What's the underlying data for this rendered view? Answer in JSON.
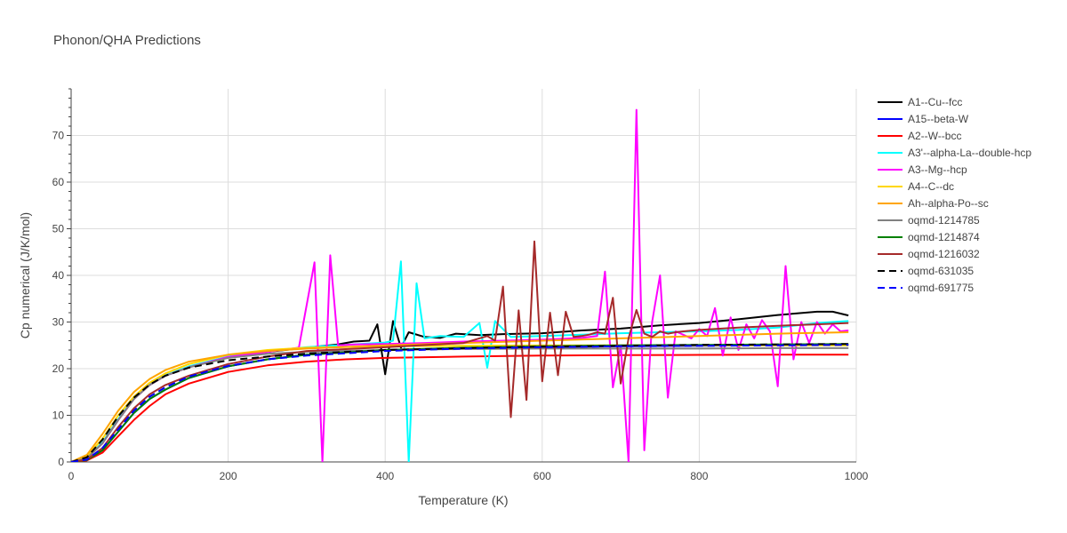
{
  "chart_data": {
    "type": "line",
    "title": "Phonon/QHA Predictions",
    "xlabel": "Temperature (K)",
    "ylabel": "Cp numerical (J/K/mol)",
    "xlim": [
      0,
      1000
    ],
    "ylim": [
      0,
      80
    ],
    "x_ticks": [
      0,
      200,
      400,
      600,
      800,
      1000
    ],
    "y_ticks": [
      0,
      10,
      20,
      30,
      40,
      50,
      60,
      70
    ],
    "grid": true,
    "legend_position": "right",
    "series": [
      {
        "name": "A1--Cu--fcc",
        "color": "#000000",
        "dash": "solid",
        "x": [
          0,
          20,
          40,
          60,
          80,
          100,
          120,
          150,
          200,
          250,
          300,
          340,
          360,
          380,
          390,
          400,
          410,
          420,
          430,
          450,
          470,
          490,
          520,
          550,
          600,
          650,
          700,
          750,
          800,
          850,
          900,
          950,
          970,
          990
        ],
        "y": [
          0,
          0.8,
          4,
          9,
          13.5,
          16.5,
          18.5,
          20.3,
          22.5,
          23.6,
          24.5,
          25.2,
          25.8,
          26,
          29.5,
          18.8,
          30.2,
          24.5,
          27.8,
          26.8,
          26.6,
          27.5,
          27.2,
          27.4,
          27.6,
          28.2,
          28.6,
          29.3,
          29.8,
          30.6,
          31.5,
          32.2,
          32.2,
          31.4
        ]
      },
      {
        "name": "A15--beta-W",
        "color": "#0000ff",
        "dash": "solid",
        "x": [
          0,
          20,
          40,
          60,
          80,
          100,
          120,
          150,
          200,
          250,
          300,
          400,
          500,
          600,
          700,
          800,
          900,
          990
        ],
        "y": [
          0,
          0.4,
          2.5,
          6.5,
          10.5,
          13.5,
          15.5,
          18,
          20.5,
          22,
          23,
          24,
          24.4,
          24.6,
          24.8,
          24.9,
          25,
          25.1
        ]
      },
      {
        "name": "A2--W--bcc",
        "color": "#ff0000",
        "dash": "solid",
        "x": [
          0,
          20,
          40,
          60,
          80,
          100,
          120,
          150,
          200,
          250,
          300,
          350,
          400,
          500,
          600,
          700,
          800,
          900,
          990
        ],
        "y": [
          0,
          0.3,
          2,
          5.5,
          9,
          12,
          14.5,
          16.8,
          19.3,
          20.7,
          21.5,
          22,
          22.3,
          22.6,
          22.8,
          22.9,
          22.95,
          23,
          23
        ]
      },
      {
        "name": "A3'--alpha-La--double-hcp",
        "color": "#00ffff",
        "dash": "solid",
        "x": [
          0,
          20,
          40,
          60,
          80,
          100,
          120,
          150,
          200,
          250,
          300,
          380,
          400,
          410,
          420,
          430,
          440,
          450,
          470,
          500,
          520,
          530,
          540,
          560,
          600,
          650,
          700,
          750,
          800,
          850,
          900,
          950,
          990
        ],
        "y": [
          0,
          0.9,
          4.2,
          9.2,
          13.6,
          16.6,
          18.6,
          20.5,
          22.6,
          23.8,
          24.6,
          25.4,
          25.6,
          26,
          43,
          0,
          38.3,
          26.5,
          27,
          26.8,
          29.8,
          20.2,
          30.2,
          26.8,
          27,
          27.3,
          27.6,
          27.8,
          28,
          28.3,
          28.8,
          29.8,
          30.2
        ]
      },
      {
        "name": "A3--Mg--hcp",
        "color": "#ff00ff",
        "dash": "solid",
        "x": [
          0,
          20,
          40,
          60,
          80,
          100,
          120,
          150,
          200,
          250,
          290,
          310,
          320,
          330,
          340,
          360,
          400,
          450,
          500,
          550,
          600,
          650,
          670,
          680,
          690,
          700,
          710,
          720,
          730,
          740,
          750,
          760,
          770,
          790,
          800,
          810,
          820,
          830,
          840,
          850,
          860,
          870,
          880,
          890,
          900,
          910,
          920,
          930,
          940,
          950,
          960,
          970,
          980,
          990
        ],
        "y": [
          0,
          0.8,
          4,
          9,
          13.5,
          16.5,
          18.5,
          20.3,
          22.5,
          23.6,
          24.5,
          42.8,
          0,
          44.3,
          25,
          25.2,
          25.3,
          25.5,
          25.8,
          26,
          26.2,
          26.6,
          27,
          40.8,
          16,
          25,
          0,
          75.5,
          2.5,
          30,
          40,
          13.8,
          28,
          26.5,
          28.5,
          27,
          33,
          22.8,
          31,
          24,
          29.5,
          26.5,
          30.4,
          28,
          16.2,
          42,
          22,
          30,
          25.5,
          30,
          27.5,
          29.5,
          28,
          28.2
        ]
      },
      {
        "name": "A4--C--dc",
        "color": "#ffd700",
        "dash": "solid",
        "x": [
          0,
          20,
          40,
          60,
          80,
          100,
          120,
          150,
          200,
          250,
          300,
          400,
          500,
          600,
          700,
          800,
          900,
          990
        ],
        "y": [
          0,
          1.2,
          5,
          10,
          14,
          17,
          19,
          21,
          23,
          24,
          24.5,
          24.8,
          24.9,
          25,
          25,
          25,
          25,
          25
        ]
      },
      {
        "name": "Ah--alpha-Po--sc",
        "color": "#ffa500",
        "dash": "solid",
        "x": [
          0,
          20,
          40,
          60,
          80,
          100,
          120,
          150,
          200,
          250,
          300,
          400,
          500,
          600,
          700,
          800,
          900,
          990
        ],
        "y": [
          0,
          1.5,
          6,
          11,
          15,
          17.8,
          19.7,
          21.5,
          23,
          23.8,
          24.3,
          25,
          25.5,
          26,
          26.5,
          27,
          27.5,
          27.8
        ]
      },
      {
        "name": "oqmd-1214785",
        "color": "#808080",
        "dash": "solid",
        "x": [
          0,
          20,
          40,
          60,
          80,
          100,
          120,
          150,
          200,
          250,
          300,
          400,
          500,
          600,
          700,
          800,
          900,
          990
        ],
        "y": [
          0,
          0.8,
          4,
          9,
          13.5,
          16.5,
          18.5,
          20.3,
          22.3,
          23.2,
          23.6,
          24,
          24.2,
          24.3,
          24.3,
          24.3,
          24.4,
          24.4
        ]
      },
      {
        "name": "oqmd-1214874",
        "color": "#008000",
        "dash": "solid",
        "x": [
          0,
          20,
          40,
          60,
          80,
          100,
          120,
          150,
          200,
          250,
          300,
          400,
          500,
          600,
          700,
          800,
          900,
          990
        ],
        "y": [
          0,
          0.4,
          2.5,
          6.5,
          10.5,
          13.5,
          15.5,
          18,
          20.5,
          22,
          23,
          24,
          24.5,
          24.8,
          25,
          25.1,
          25.2,
          25.3
        ]
      },
      {
        "name": "oqmd-1216032",
        "color": "#a52a2a",
        "dash": "solid",
        "x": [
          0,
          20,
          40,
          60,
          80,
          100,
          120,
          150,
          200,
          250,
          300,
          400,
          500,
          530,
          540,
          550,
          560,
          570,
          580,
          590,
          600,
          610,
          620,
          630,
          640,
          650,
          660,
          670,
          680,
          690,
          700,
          710,
          720,
          730,
          740,
          750,
          760,
          770,
          780,
          800,
          850,
          900,
          950,
          990
        ],
        "y": [
          0,
          0.5,
          3,
          7.5,
          11.5,
          14.5,
          16.5,
          18.5,
          21,
          22.6,
          23.8,
          24.6,
          25.5,
          27,
          26,
          37.6,
          9.6,
          32.5,
          13.3,
          47.3,
          17.3,
          32,
          18.6,
          32.2,
          26.8,
          27,
          27.3,
          27.8,
          27.5,
          35.2,
          16.8,
          26.5,
          32.6,
          27.5,
          26.8,
          28,
          27.5,
          27.8,
          28,
          28.3,
          28.8,
          29.2,
          29.5,
          29.8
        ]
      },
      {
        "name": "oqmd-631035",
        "color": "#000000",
        "dash": "dash",
        "x": [
          0,
          20,
          40,
          60,
          80,
          100,
          120,
          150,
          200,
          250,
          300,
          400,
          500,
          600,
          700,
          800,
          900,
          990
        ],
        "y": [
          0,
          1,
          4.8,
          9.8,
          13.8,
          16.6,
          18.5,
          20.2,
          21.8,
          22.6,
          23.2,
          24,
          24.4,
          24.7,
          24.9,
          25.1,
          25.2,
          25.3
        ]
      },
      {
        "name": "oqmd-691775",
        "color": "#0000ff",
        "dash": "dash",
        "x": [
          0,
          20,
          40,
          60,
          80,
          100,
          120,
          150,
          200,
          250,
          300,
          400,
          500,
          600,
          700,
          800,
          900,
          990
        ],
        "y": [
          0,
          0.5,
          3,
          7,
          11,
          14,
          16,
          18.3,
          20.6,
          22,
          22.8,
          23.8,
          24.3,
          24.6,
          24.8,
          24.9,
          25,
          25.1
        ]
      }
    ]
  }
}
